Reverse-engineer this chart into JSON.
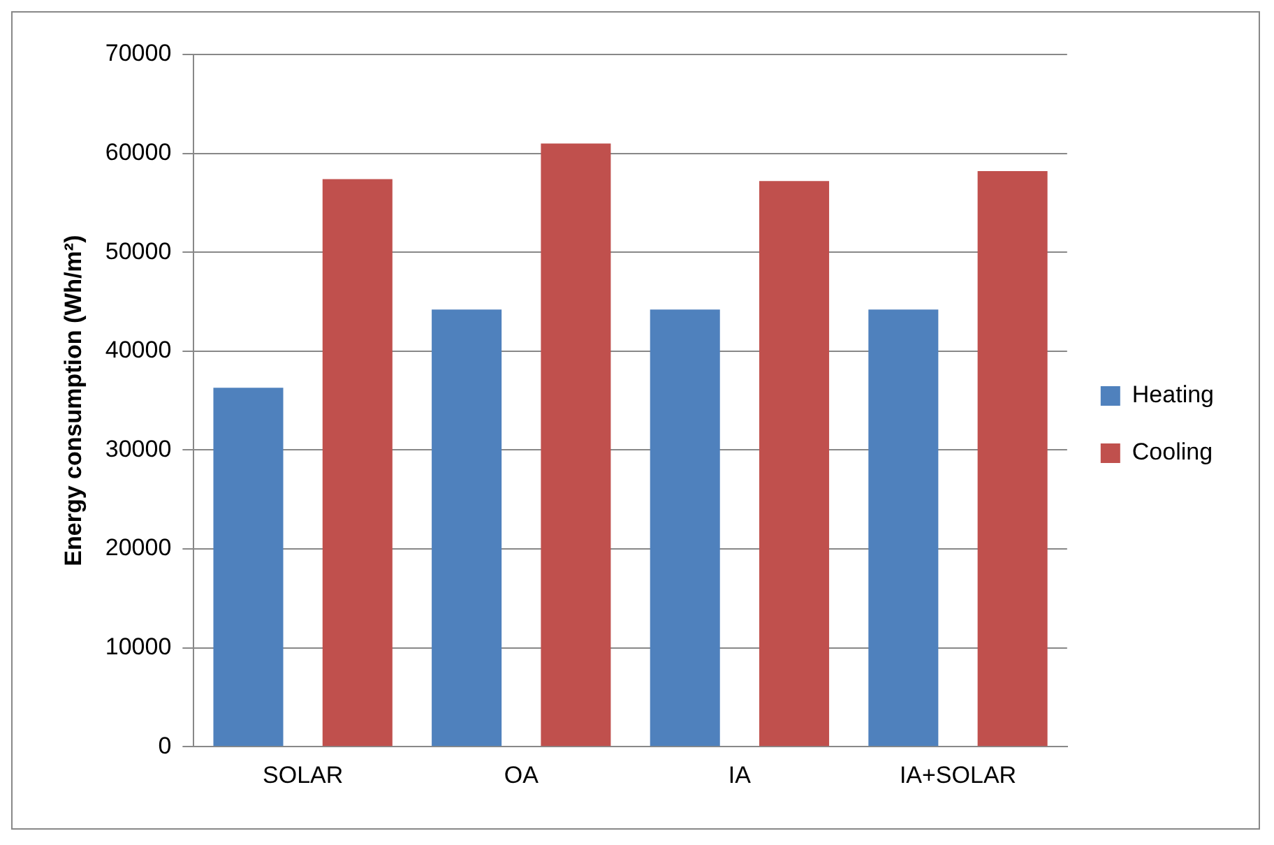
{
  "chart_data": {
    "type": "bar",
    "ylabel": "Energy consumption (Wh/m²)",
    "categories": [
      "SOLAR",
      "OA",
      "IA",
      "IA+SOLAR"
    ],
    "series": [
      {
        "name": "Heating",
        "color": "#4f81bd",
        "values": [
          36300,
          44200,
          44200,
          44200
        ]
      },
      {
        "name": "Cooling",
        "color": "#c0504d",
        "values": [
          57400,
          61000,
          57200,
          58200
        ]
      }
    ],
    "ylim": [
      0,
      70000
    ],
    "yticks": [
      0,
      10000,
      20000,
      30000,
      40000,
      50000,
      60000,
      70000
    ],
    "grid": "y",
    "legend": "right"
  }
}
